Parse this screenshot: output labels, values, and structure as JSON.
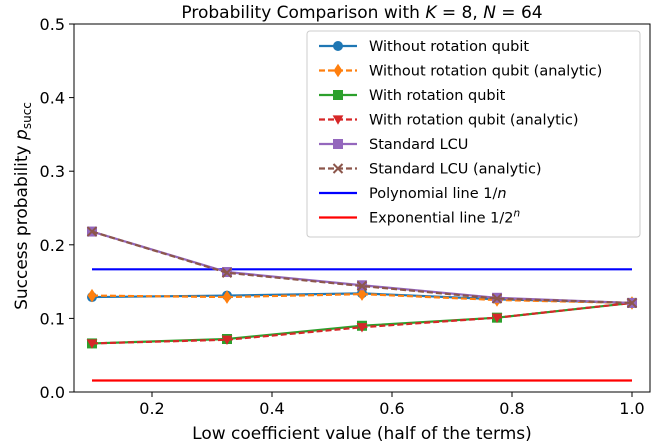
{
  "chart_data": {
    "type": "line",
    "title": "Probability Comparison with K = 8, N = 64",
    "title_parts": {
      "prefix": "Probability Comparison with ",
      "k_sym": "K",
      "k_val": " = 8, ",
      "n_sym": "N",
      "n_val": " = 64"
    },
    "xlabel": "Low coefficient value (half of the terms)",
    "ylabel": "Success probability p_succ",
    "ylabel_parts": {
      "prefix": "Success probability ",
      "sym": "p",
      "sub": "succ"
    },
    "xlim": [
      0.07,
      1.03
    ],
    "ylim": [
      0.0,
      0.5
    ],
    "x_ticks": [
      0.2,
      0.4,
      0.6,
      0.8,
      1.0
    ],
    "x_tick_labels": [
      "0.2",
      "0.4",
      "0.6",
      "0.8",
      "1.0"
    ],
    "y_ticks": [
      0.0,
      0.1,
      0.2,
      0.3,
      0.4,
      0.5
    ],
    "y_tick_labels": [
      "0.0",
      "0.1",
      "0.2",
      "0.3",
      "0.4",
      "0.5"
    ],
    "grid": false,
    "legend_position": "top-right",
    "x": [
      0.1,
      0.325,
      0.55,
      0.775,
      1.0
    ],
    "series": [
      {
        "name": "Without rotation qubit",
        "values": [
          0.129,
          0.131,
          0.134,
          0.126,
          0.121
        ],
        "color": "#1f77b4",
        "dash": "solid",
        "marker": "circle"
      },
      {
        "name": "Without rotation qubit (analytic)",
        "values": [
          0.131,
          0.129,
          0.133,
          0.125,
          0.121
        ],
        "color": "#ff7f0e",
        "dash": "dashed",
        "marker": "diamond"
      },
      {
        "name": "With rotation qubit",
        "values": [
          0.066,
          0.072,
          0.09,
          0.101,
          0.121
        ],
        "color": "#2ca02c",
        "dash": "solid",
        "marker": "square"
      },
      {
        "name": "With rotation qubit (analytic)",
        "values": [
          0.066,
          0.071,
          0.088,
          0.101,
          0.121
        ],
        "color": "#d62728",
        "dash": "dashed",
        "marker": "triangle-down"
      },
      {
        "name": "Standard LCU",
        "values": [
          0.218,
          0.163,
          0.145,
          0.128,
          0.121
        ],
        "color": "#9467bd",
        "dash": "solid",
        "marker": "square"
      },
      {
        "name": "Standard LCU (analytic)",
        "values": [
          0.218,
          0.162,
          0.144,
          0.127,
          0.121
        ],
        "color": "#8c564b",
        "dash": "dashed",
        "marker": "x"
      }
    ],
    "reference_lines": [
      {
        "name": "Polynomial line 1/n",
        "name_prefix": "Polynomial line 1/",
        "name_sym": "n",
        "y": 0.1667,
        "x_range": [
          0.1,
          1.0
        ],
        "color": "#0000ff"
      },
      {
        "name": "Exponential line 1/2^n",
        "name_prefix": "Exponential line 1/2",
        "name_sym": "n",
        "y": 0.0156,
        "x_range": [
          0.1,
          1.0
        ],
        "color": "#ff0000"
      }
    ]
  }
}
